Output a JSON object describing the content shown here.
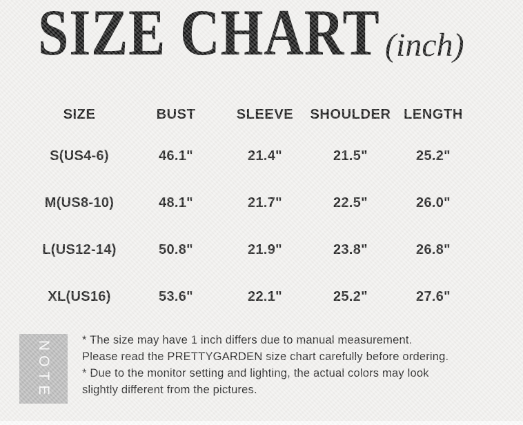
{
  "title": {
    "main": "SIZE CHART",
    "unit": "(inch)"
  },
  "chart_data": {
    "type": "table",
    "title": "SIZE CHART (inch)",
    "units": "inch",
    "columns": [
      "SIZE",
      "BUST",
      "SLEEVE",
      "SHOULDER",
      "LENGTH"
    ],
    "rows": [
      [
        "S(US4-6)",
        "46.1\"",
        "21.4\"",
        "21.5\"",
        "25.2\""
      ],
      [
        "M(US8-10)",
        "48.1\"",
        "21.7\"",
        "22.5\"",
        "26.0\""
      ],
      [
        "L(US12-14)",
        "50.8\"",
        "21.9\"",
        "23.8\"",
        "26.8\""
      ],
      [
        "XL(US16)",
        "53.6\"",
        "22.1\"",
        "25.2\"",
        "27.6\""
      ]
    ]
  },
  "note": {
    "label": "NOTE",
    "lines": [
      "* The size may have 1 inch differs due to manual measurement.",
      "Please read the PRETTYGARDEN size chart carefully before ordering.",
      "* Due to the monitor setting and lighting, the actual colors may look",
      "slightly different from the pictures."
    ]
  },
  "colors": {
    "background": "#f1f0ee",
    "ink": "#121212",
    "note_box": "#b9b9b9",
    "note_ink": "#fbfbfb"
  }
}
